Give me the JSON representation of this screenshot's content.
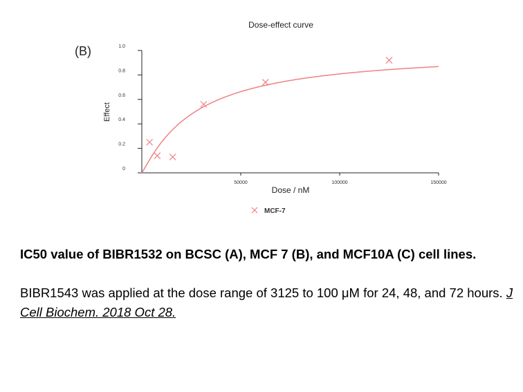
{
  "panel_label": "(B)",
  "chart_data": {
    "type": "scatter",
    "title": "Dose-effect curve",
    "xlabel": "Dose / nM",
    "ylabel": "Effect",
    "xlim": [
      0,
      150000
    ],
    "ylim": [
      0,
      1.0
    ],
    "x_ticks": [
      50000,
      100000,
      150000
    ],
    "y_ticks": [
      0,
      0.2,
      0.4,
      0.6,
      0.8,
      1.0
    ],
    "grid": false,
    "legend_position": "bottom-center",
    "series": [
      {
        "name": "MCF-7",
        "marker": "x",
        "x": [
          3906,
          7813,
          15625,
          31250,
          62500,
          125000
        ],
        "y": [
          0.25,
          0.14,
          0.13,
          0.56,
          0.74,
          0.92
        ]
      }
    ],
    "fit_curve": {
      "model": "hill",
      "ic50": 27000,
      "hill_slope": 1.1,
      "max": 1.0
    },
    "colors": {
      "series": "#f08080",
      "axis": "#222222"
    }
  },
  "caption": {
    "title": "IC50 value of BIBR1532 on BCSC (A), MCF 7 (B), and MCF10A (C) cell lines.",
    "body": "BIBR1543 was applied at the dose range of 3125 to 100 μM for 24, 48, and 72 hours.",
    "citation": "J Cell Biochem. 2018 Oct 28."
  }
}
